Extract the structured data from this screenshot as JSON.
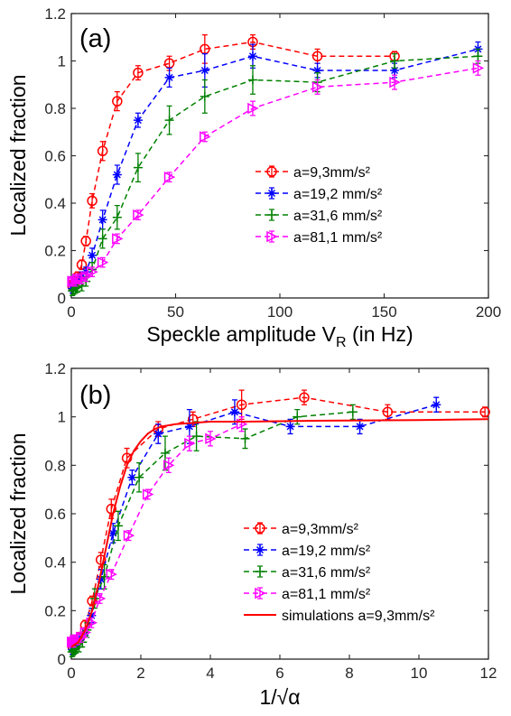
{
  "chart_data": [
    {
      "type": "line",
      "panel_label": "(a)",
      "xlabel": "Speckle amplitude V",
      "xlabel_sub": "R",
      "xlabel_suffix": " (in Hz)",
      "ylabel": "Localized fraction",
      "xlim": [
        0,
        200
      ],
      "ylim": [
        0,
        1.2
      ],
      "xticks": [
        0,
        50,
        100,
        150,
        200
      ],
      "yticks": [
        0,
        0.2,
        0.4,
        0.6,
        0.8,
        1,
        1.2
      ],
      "xtick_labels": [
        "0",
        "50",
        "100",
        "150",
        "200"
      ],
      "ytick_labels": [
        "0",
        "0.2",
        "0.4",
        "0.6",
        "0.8",
        "1",
        "1.2"
      ],
      "legend_position": "center-right",
      "series": [
        {
          "name": "a=9,3mm/s²",
          "color": "#ff0000",
          "marker": "circle",
          "x": [
            0.5,
            1,
            2,
            3,
            5,
            7,
            10,
            15,
            22,
            32,
            47,
            64,
            87,
            118,
            155
          ],
          "y": [
            0.05,
            0.06,
            0.07,
            0.09,
            0.14,
            0.24,
            0.41,
            0.62,
            0.83,
            0.95,
            0.99,
            1.05,
            1.08,
            1.02,
            1.02
          ],
          "err": [
            0.02,
            0.02,
            0.02,
            0.02,
            0.02,
            0.02,
            0.03,
            0.04,
            0.04,
            0.03,
            0.03,
            0.06,
            0.03,
            0.03,
            0.02
          ]
        },
        {
          "name": "a=19,2 mm/s²",
          "color": "#0000ff",
          "marker": "star",
          "x": [
            0.5,
            1,
            2,
            3,
            5,
            7,
            10,
            15,
            22,
            32,
            47,
            64,
            87,
            118,
            155,
            195
          ],
          "y": [
            0.04,
            0.05,
            0.06,
            0.07,
            0.09,
            0.11,
            0.18,
            0.33,
            0.52,
            0.75,
            0.93,
            0.96,
            1.02,
            0.96,
            0.96,
            1.05
          ],
          "err": [
            0.02,
            0.02,
            0.02,
            0.02,
            0.02,
            0.02,
            0.03,
            0.04,
            0.04,
            0.03,
            0.04,
            0.07,
            0.05,
            0.03,
            0.03,
            0.03
          ]
        },
        {
          "name": "a=31,6 mm/s²",
          "color": "#008000",
          "marker": "plus",
          "x": [
            0.5,
            1,
            2,
            3,
            5,
            7,
            10,
            15,
            22,
            32,
            47,
            64,
            87,
            118,
            155,
            195
          ],
          "y": [
            0.03,
            0.035,
            0.04,
            0.045,
            0.05,
            0.07,
            0.12,
            0.25,
            0.34,
            0.55,
            0.75,
            0.85,
            0.92,
            0.91,
            1.0,
            1.02
          ],
          "err": [
            0.02,
            0.02,
            0.02,
            0.02,
            0.02,
            0.02,
            0.03,
            0.04,
            0.05,
            0.06,
            0.06,
            0.07,
            0.06,
            0.04,
            0.03,
            0.03
          ]
        },
        {
          "name": "a=81,1 mm/s²",
          "color": "#ff00ff",
          "marker": "triangle-right",
          "x": [
            0.5,
            1,
            2,
            3,
            5,
            7,
            10,
            15,
            22,
            32,
            47,
            64,
            87,
            118,
            155,
            195
          ],
          "y": [
            0.07,
            0.07,
            0.07,
            0.08,
            0.08,
            0.09,
            0.11,
            0.15,
            0.25,
            0.35,
            0.51,
            0.68,
            0.8,
            0.89,
            0.91,
            0.97
          ],
          "err": [
            0.02,
            0.02,
            0.02,
            0.02,
            0.02,
            0.02,
            0.02,
            0.02,
            0.02,
            0.02,
            0.02,
            0.02,
            0.03,
            0.03,
            0.03,
            0.03
          ]
        }
      ]
    },
    {
      "type": "line",
      "panel_label": "(b)",
      "xlabel": "1/√α",
      "ylabel": "Localized fraction",
      "xlim": [
        0,
        12
      ],
      "ylim": [
        0,
        1.2
      ],
      "xticks": [
        0,
        2,
        4,
        6,
        8,
        10,
        12
      ],
      "yticks": [
        0,
        0.2,
        0.4,
        0.6,
        0.8,
        1,
        1.2
      ],
      "xtick_labels": [
        "0",
        "2",
        "4",
        "6",
        "8",
        "10",
        "12"
      ],
      "ytick_labels": [
        "0",
        "0.2",
        "0.4",
        "0.6",
        "0.8",
        "1",
        "1.2"
      ],
      "legend_position": "center-right",
      "series": [
        {
          "name": "a=9,3mm/s²",
          "color": "#ff0000",
          "marker": "circle",
          "x": [
            0.04,
            0.08,
            0.15,
            0.25,
            0.4,
            0.6,
            0.85,
            1.15,
            1.6,
            2.5,
            3.5,
            4.9,
            6.7,
            9.1,
            11.9
          ],
          "y": [
            0.05,
            0.06,
            0.07,
            0.09,
            0.14,
            0.24,
            0.41,
            0.62,
            0.83,
            0.95,
            0.99,
            1.05,
            1.08,
            1.02,
            1.02
          ],
          "err": [
            0.02,
            0.02,
            0.02,
            0.02,
            0.02,
            0.02,
            0.03,
            0.04,
            0.04,
            0.03,
            0.03,
            0.06,
            0.03,
            0.03,
            0.02
          ]
        },
        {
          "name": "a=19,2 mm/s²",
          "color": "#0000ff",
          "marker": "star",
          "x": [
            0.03,
            0.06,
            0.1,
            0.17,
            0.28,
            0.4,
            0.58,
            0.85,
            1.2,
            1.75,
            2.5,
            3.4,
            4.7,
            6.3,
            8.3,
            10.5
          ],
          "y": [
            0.04,
            0.05,
            0.06,
            0.07,
            0.09,
            0.11,
            0.18,
            0.33,
            0.52,
            0.75,
            0.93,
            0.96,
            1.02,
            0.96,
            0.96,
            1.05
          ],
          "err": [
            0.02,
            0.02,
            0.02,
            0.02,
            0.02,
            0.02,
            0.03,
            0.04,
            0.04,
            0.03,
            0.04,
            0.07,
            0.05,
            0.03,
            0.03,
            0.03
          ]
        },
        {
          "name": "a=31,6 mm/s²",
          "color": "#008000",
          "marker": "plus",
          "x": [
            0.02,
            0.05,
            0.08,
            0.13,
            0.22,
            0.32,
            0.45,
            0.67,
            0.95,
            1.35,
            1.95,
            2.7,
            3.6,
            5.0,
            6.5,
            8.1
          ],
          "y": [
            0.03,
            0.035,
            0.04,
            0.045,
            0.05,
            0.07,
            0.12,
            0.25,
            0.34,
            0.55,
            0.75,
            0.85,
            0.92,
            0.91,
            1.0,
            1.02
          ],
          "err": [
            0.02,
            0.02,
            0.02,
            0.02,
            0.02,
            0.02,
            0.03,
            0.04,
            0.05,
            0.06,
            0.06,
            0.07,
            0.06,
            0.04,
            0.03,
            0.03
          ]
        },
        {
          "name": "a=81,1 mm/s²",
          "color": "#ff00ff",
          "marker": "triangle-right",
          "x": [
            0.02,
            0.04,
            0.07,
            0.11,
            0.18,
            0.28,
            0.4,
            0.58,
            0.82,
            1.15,
            1.65,
            2.2,
            2.8,
            3.4,
            4.0,
            4.9
          ],
          "y": [
            0.07,
            0.07,
            0.07,
            0.08,
            0.08,
            0.09,
            0.11,
            0.15,
            0.25,
            0.35,
            0.51,
            0.68,
            0.8,
            0.89,
            0.91,
            0.97
          ],
          "err": [
            0.02,
            0.02,
            0.02,
            0.02,
            0.02,
            0.02,
            0.02,
            0.02,
            0.02,
            0.02,
            0.02,
            0.02,
            0.03,
            0.03,
            0.03,
            0.03
          ]
        },
        {
          "name": "simulations a=9,3mm/s²",
          "color": "#ff0000",
          "marker": "none",
          "style": "solid",
          "x": [
            0,
            0.2,
            0.4,
            0.6,
            0.8,
            1.0,
            1.2,
            1.4,
            1.6,
            1.8,
            2.0,
            2.2,
            2.4,
            2.6,
            3.0,
            3.5,
            4.0,
            5.0,
            6.0,
            7.0,
            8.0,
            10.0,
            12.0
          ],
          "y": [
            0.05,
            0.07,
            0.12,
            0.2,
            0.32,
            0.46,
            0.6,
            0.71,
            0.8,
            0.86,
            0.9,
            0.93,
            0.95,
            0.96,
            0.97,
            0.975,
            0.98,
            0.98,
            0.982,
            0.984,
            0.985,
            0.987,
            0.99
          ]
        }
      ]
    }
  ]
}
